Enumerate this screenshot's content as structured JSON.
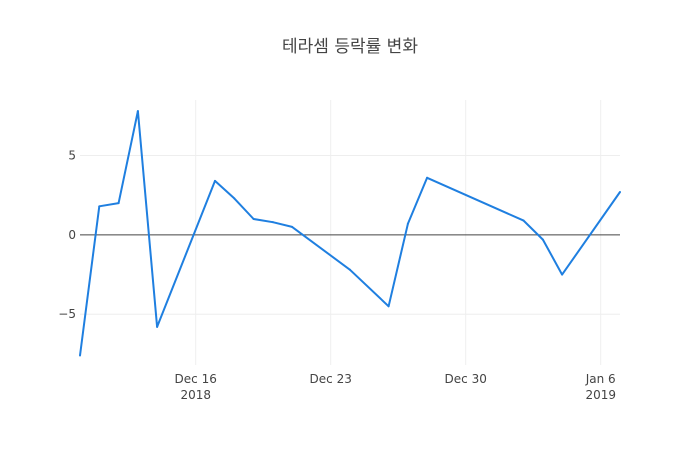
{
  "chart_data": {
    "type": "line",
    "title": "테라셈 등락률 변화",
    "xlabel": "",
    "ylabel": "",
    "line_color": "#1f7fe0",
    "grid": true,
    "xlim": [
      "2018-12-10",
      "2019-01-07"
    ],
    "ylim": [
      -8.2,
      8.5
    ],
    "y_ticks": [
      {
        "value": 5,
        "label": "5"
      },
      {
        "value": 0,
        "label": "0"
      },
      {
        "value": -5,
        "label": "−5"
      }
    ],
    "x_ticks": [
      {
        "date": "2018-12-16",
        "label": "Dec 16",
        "sublabel": "2018"
      },
      {
        "date": "2018-12-23",
        "label": "Dec 23",
        "sublabel": ""
      },
      {
        "date": "2018-12-30",
        "label": "Dec 30",
        "sublabel": ""
      },
      {
        "date": "2019-01-06",
        "label": "Jan 6",
        "sublabel": "2019"
      }
    ],
    "series": [
      {
        "x": [
          "2018-12-10",
          "2018-12-11",
          "2018-12-12",
          "2018-12-13",
          "2018-12-14",
          "2018-12-17",
          "2018-12-18",
          "2018-12-19",
          "2018-12-20",
          "2018-12-21",
          "2018-12-24",
          "2018-12-26",
          "2018-12-27",
          "2018-12-28",
          "2019-01-02",
          "2019-01-03",
          "2019-01-04",
          "2019-01-07"
        ],
        "y": [
          -7.6,
          1.8,
          2.0,
          7.8,
          -5.8,
          3.4,
          2.3,
          1.0,
          0.8,
          0.5,
          -2.2,
          -4.5,
          0.7,
          3.6,
          0.9,
          -0.3,
          -2.5,
          2.7
        ]
      }
    ]
  }
}
